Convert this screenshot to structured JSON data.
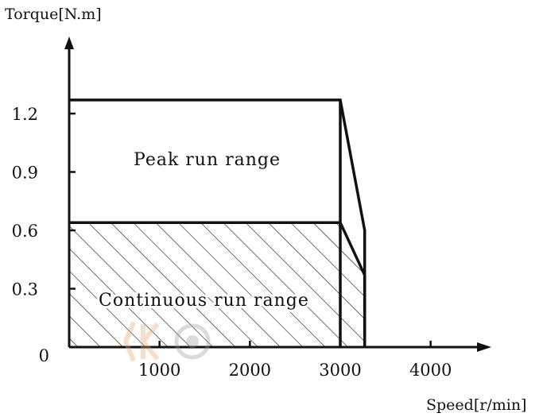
{
  "chart_data": {
    "type": "area",
    "ylabel": "Torque[N.m]",
    "xlabel": "Speed[r/min]",
    "y_ticks": [
      {
        "value": 0,
        "label": "0"
      },
      {
        "value": 0.3,
        "label": "0.3"
      },
      {
        "value": 0.6,
        "label": "0.6"
      },
      {
        "value": 0.9,
        "label": "0.9"
      },
      {
        "value": 1.2,
        "label": "1.2"
      }
    ],
    "x_ticks": [
      {
        "value": 1000,
        "label": "1000"
      },
      {
        "value": 2000,
        "label": "2000"
      },
      {
        "value": 3000,
        "label": "3000"
      },
      {
        "value": 4000,
        "label": "4000"
      }
    ],
    "xlim": [
      0,
      4500
    ],
    "ylim": [
      0,
      1.5
    ],
    "series": [
      {
        "name": "Peak run range",
        "points": [
          [
            0,
            1.27
          ],
          [
            3000,
            1.27
          ],
          [
            3270,
            0.6
          ],
          [
            3270,
            0
          ]
        ]
      },
      {
        "name": "Continuous run range",
        "points": [
          [
            0,
            0.64
          ],
          [
            3000,
            0.64
          ],
          [
            3270,
            0.37
          ],
          [
            3270,
            0
          ]
        ]
      }
    ],
    "regions": {
      "peak_label": "Peak run range",
      "continuous_label": "Continuous run range"
    },
    "grid": false,
    "hatch_continuous": true
  },
  "colors": {
    "line": "#111111",
    "watermark": "#e8a070"
  }
}
